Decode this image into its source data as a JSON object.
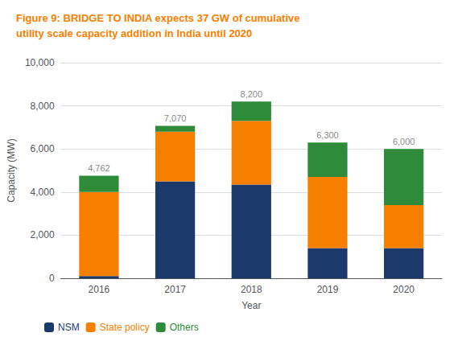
{
  "chart_data": {
    "type": "bar",
    "stacked": true,
    "title": "Figure 9: BRIDGE TO INDIA expects 37 GW of cumulative\nutility scale capacity addition in India until 2020",
    "title_color": "#f77f00",
    "xlabel": "Year",
    "ylabel": "Capacity (MW)",
    "categories": [
      "2016",
      "2017",
      "2018",
      "2019",
      "2020"
    ],
    "series": [
      {
        "name": "NSM",
        "color": "#1b3a6b",
        "values": [
          100,
          4500,
          4350,
          1400,
          1400
        ]
      },
      {
        "name": "State policy",
        "color": "#f77f00",
        "values": [
          3900,
          2300,
          2950,
          3300,
          2000
        ]
      },
      {
        "name": "Others",
        "color": "#2e8b3a",
        "values": [
          762,
          270,
          900,
          1600,
          2600
        ]
      }
    ],
    "totals": [
      4762,
      7070,
      8200,
      6300,
      6000
    ],
    "total_labels": [
      "4,762",
      "7,070",
      "8,200",
      "6,300",
      "6,000"
    ],
    "ylim": [
      0,
      10000
    ],
    "yticks": [
      0,
      {
        "value": 2000,
        "label": "2,000"
      },
      {
        "value": 4000,
        "label": "4,000"
      },
      {
        "value": 6000,
        "label": "6,000"
      },
      {
        "value": 8000,
        "label": "8,000"
      },
      {
        "value": 10000,
        "label": "10,000"
      }
    ],
    "grid": true,
    "legend": "bottom left"
  }
}
